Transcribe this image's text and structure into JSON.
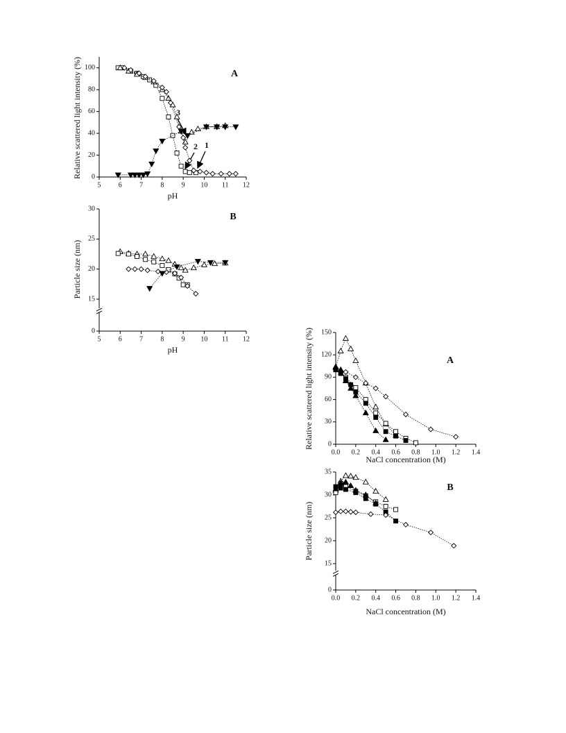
{
  "chart_data": [
    {
      "type": "line",
      "panel_label": "A",
      "annotations": [
        "1",
        "2",
        "3"
      ],
      "xlabel": "pH",
      "ylabel": "Relative scattered light intensity (%)",
      "xlim": [
        5,
        12
      ],
      "xticks": [
        5,
        6,
        7,
        8,
        9,
        10,
        11,
        12
      ],
      "ylim": [
        0,
        110
      ],
      "yticks": [
        0,
        20,
        40,
        60,
        80,
        100
      ],
      "series": [
        {
          "marker": "square",
          "filled": false,
          "color": "#000000",
          "line": "dotted",
          "x": [
            5.9,
            6.1,
            6.5,
            6.8,
            7.1,
            7.4,
            7.7,
            8.0,
            8.3,
            8.5,
            8.7,
            8.9,
            9.1,
            9.3,
            9.6
          ],
          "values": [
            100,
            100,
            97,
            95,
            92,
            89,
            84,
            72,
            55,
            38,
            22,
            10,
            5,
            4,
            4
          ]
        },
        {
          "marker": "triangle",
          "filled": false,
          "color": "#000000",
          "line": "dotted",
          "x": [
            6.0,
            6.4,
            6.8,
            7.2,
            7.6,
            8.0,
            8.3,
            8.5,
            8.7,
            8.9,
            9.1,
            9.4,
            9.7,
            10.1,
            10.6,
            11.0
          ],
          "values": [
            100,
            97,
            94,
            91,
            87,
            80,
            72,
            66,
            55,
            42,
            32,
            41,
            44,
            46,
            46,
            47
          ]
        },
        {
          "marker": "diamond",
          "filled": false,
          "color": "#000000",
          "line": "dotted",
          "x": [
            6.2,
            6.5,
            6.9,
            7.2,
            7.6,
            8.0,
            8.2,
            8.4,
            8.8,
            9.0,
            9.1,
            9.3,
            9.5,
            9.8,
            10.1,
            10.4,
            10.8,
            11.2,
            11.5
          ],
          "values": [
            100,
            98,
            95,
            92,
            88,
            82,
            78,
            68,
            46,
            36,
            27,
            15,
            6,
            5,
            4,
            3,
            3,
            3,
            3
          ]
        },
        {
          "marker": "triangle-down",
          "filled": true,
          "color": "#000000",
          "line": "dotted",
          "x": [
            5.9,
            6.5,
            6.7,
            6.9,
            7.1,
            7.3,
            7.5,
            7.7,
            8.0,
            8.9,
            9.2,
            10.1,
            10.6,
            11.0,
            11.5
          ],
          "values": [
            2,
            2,
            2,
            2,
            2,
            3,
            12,
            24,
            33,
            42,
            38,
            46,
            46,
            46,
            46
          ]
        }
      ]
    },
    {
      "type": "line",
      "panel_label": "B",
      "xlabel": "pH",
      "ylabel": "Particle size (nm)",
      "xlim": [
        5,
        12
      ],
      "xticks": [
        5,
        6,
        7,
        8,
        9,
        10,
        11,
        12
      ],
      "ylim": [
        0,
        30
      ],
      "yticks": [
        0,
        15,
        20,
        25,
        30
      ],
      "axis_break": [
        0,
        15
      ],
      "series": [
        {
          "marker": "triangle",
          "filled": false,
          "color": "#000000",
          "line": "dotted",
          "x": [
            6.0,
            6.4,
            6.8,
            7.2,
            7.6,
            8.0,
            8.3,
            8.6,
            8.9,
            9.1,
            9.5,
            10.0,
            10.5,
            11.0
          ],
          "values": [
            22.9,
            22.6,
            22.5,
            22.5,
            22.1,
            21.7,
            21.4,
            20.8,
            20.2,
            19.8,
            20.2,
            20.7,
            20.9,
            21.0
          ]
        },
        {
          "marker": "square",
          "filled": false,
          "color": "#000000",
          "line": "dotted",
          "x": [
            5.9,
            6.4,
            6.8,
            7.2,
            7.6,
            8.0,
            8.3,
            8.6,
            8.8,
            9.0,
            9.2
          ],
          "values": [
            22.6,
            22.5,
            22.1,
            21.6,
            21.2,
            20.6,
            19.9,
            19.2,
            18.5,
            17.4,
            17.4
          ]
        },
        {
          "marker": "diamond",
          "filled": false,
          "color": "#000000",
          "line": "dotted",
          "x": [
            6.4,
            6.7,
            7.0,
            7.3,
            7.8,
            8.2,
            8.6,
            8.9,
            9.2,
            9.6
          ],
          "values": [
            20.0,
            20.0,
            20.0,
            19.8,
            19.6,
            19.5,
            19.3,
            18.6,
            17.2,
            15.9
          ]
        },
        {
          "marker": "triangle-down",
          "filled": true,
          "color": "#000000",
          "line": "dotted",
          "x": [
            7.4,
            8.0,
            8.7,
            9.7,
            10.3,
            11.0
          ],
          "values": [
            16.8,
            19.3,
            20.4,
            21.3,
            21.1,
            21.1
          ]
        }
      ]
    },
    {
      "type": "line",
      "panel_label": "A",
      "xlabel": "NaCl concentration (M)",
      "ylabel": "Relative scattered light intensity (%)",
      "xlim": [
        0,
        1.4
      ],
      "xticks": [
        {
          "value": 0,
          "label": "0.0"
        },
        0.2,
        0.4,
        0.6,
        0.8,
        {
          "value": 1,
          "label": "1.0"
        },
        1.2,
        1.4
      ],
      "ylim": [
        0,
        150
      ],
      "yticks": [
        0,
        30,
        60,
        90,
        120,
        150
      ],
      "series": [
        {
          "marker": "triangle",
          "filled": false,
          "color": "#000000",
          "line": "dotted",
          "x": [
            0,
            0.05,
            0.1,
            0.15,
            0.2,
            0.3,
            0.4,
            0.5,
            0.6
          ],
          "values": [
            104,
            125,
            142,
            128,
            112,
            82,
            50,
            27,
            12
          ]
        },
        {
          "marker": "diamond",
          "filled": false,
          "color": "#000000",
          "line": "dotted",
          "x": [
            0,
            0.1,
            0.2,
            0.3,
            0.4,
            0.5,
            0.7,
            0.95,
            1.2
          ],
          "values": [
            102,
            97,
            90,
            82,
            75,
            64,
            40,
            20,
            10
          ]
        },
        {
          "marker": "square",
          "filled": false,
          "color": "#000000",
          "line": "dotted",
          "x": [
            0,
            0.05,
            0.1,
            0.2,
            0.3,
            0.4,
            0.5,
            0.6,
            0.7,
            0.8
          ],
          "values": [
            100,
            95,
            90,
            76,
            60,
            42,
            28,
            17,
            8,
            2
          ]
        },
        {
          "marker": "square",
          "filled": true,
          "color": "#000000",
          "line": "dotted",
          "x": [
            0,
            0.05,
            0.1,
            0.15,
            0.2,
            0.3,
            0.4,
            0.5,
            0.6,
            0.7
          ],
          "values": [
            100,
            95,
            88,
            80,
            70,
            55,
            36,
            17,
            11,
            5
          ]
        },
        {
          "marker": "triangle",
          "filled": true,
          "color": "#000000",
          "line": "dotted",
          "x": [
            0,
            0.05,
            0.1,
            0.15,
            0.2,
            0.3,
            0.4,
            0.5
          ],
          "values": [
            103,
            100,
            85,
            75,
            65,
            42,
            18,
            6
          ]
        }
      ]
    },
    {
      "type": "line",
      "panel_label": "B",
      "xlabel": "NaCl concentration (M)",
      "ylabel": "Particle size (nm)",
      "xlim": [
        0,
        1.4
      ],
      "xticks": [
        {
          "value": 0,
          "label": "0.0"
        },
        0.2,
        0.4,
        0.6,
        0.8,
        {
          "value": 1,
          "label": "1.0"
        },
        1.2,
        1.4
      ],
      "ylim": [
        0,
        35
      ],
      "yticks": [
        0,
        15,
        20,
        25,
        30,
        35
      ],
      "axis_break": [
        0,
        15
      ],
      "series": [
        {
          "marker": "triangle",
          "filled": false,
          "color": "#000000",
          "line": "dotted",
          "x": [
            0,
            0.05,
            0.1,
            0.15,
            0.2,
            0.3,
            0.4,
            0.5
          ],
          "values": [
            31.0,
            33.0,
            34.2,
            34.1,
            33.8,
            32.8,
            30.8,
            29.0
          ]
        },
        {
          "marker": "square",
          "filled": false,
          "color": "#000000",
          "line": "dotted",
          "x": [
            0,
            0.05,
            0.1,
            0.2,
            0.3,
            0.4,
            0.5,
            0.6
          ],
          "values": [
            30.5,
            32.5,
            31.8,
            30.8,
            29.8,
            28.5,
            27.5,
            26.8
          ]
        },
        {
          "marker": "triangle",
          "filled": true,
          "color": "#000000",
          "line": "dotted",
          "x": [
            0,
            0.05,
            0.1,
            0.15,
            0.2,
            0.3,
            0.4
          ],
          "values": [
            31.3,
            32.6,
            32.8,
            32.0,
            31.0,
            30.0,
            28.2
          ]
        },
        {
          "marker": "square",
          "filled": true,
          "color": "#000000",
          "line": "dotted",
          "x": [
            0,
            0.05,
            0.1,
            0.2,
            0.3,
            0.4,
            0.5,
            0.6
          ],
          "values": [
            31.8,
            31.5,
            31.2,
            30.5,
            29.2,
            28.0,
            26.3,
            24.3
          ]
        },
        {
          "marker": "diamond",
          "filled": false,
          "color": "#000000",
          "line": "dotted",
          "x": [
            0,
            0.05,
            0.1,
            0.15,
            0.2,
            0.35,
            0.5,
            0.7,
            0.95,
            1.18
          ],
          "values": [
            26.2,
            26.4,
            26.4,
            26.3,
            26.2,
            25.8,
            25.6,
            23.5,
            21.8,
            18.9
          ]
        }
      ]
    }
  ]
}
